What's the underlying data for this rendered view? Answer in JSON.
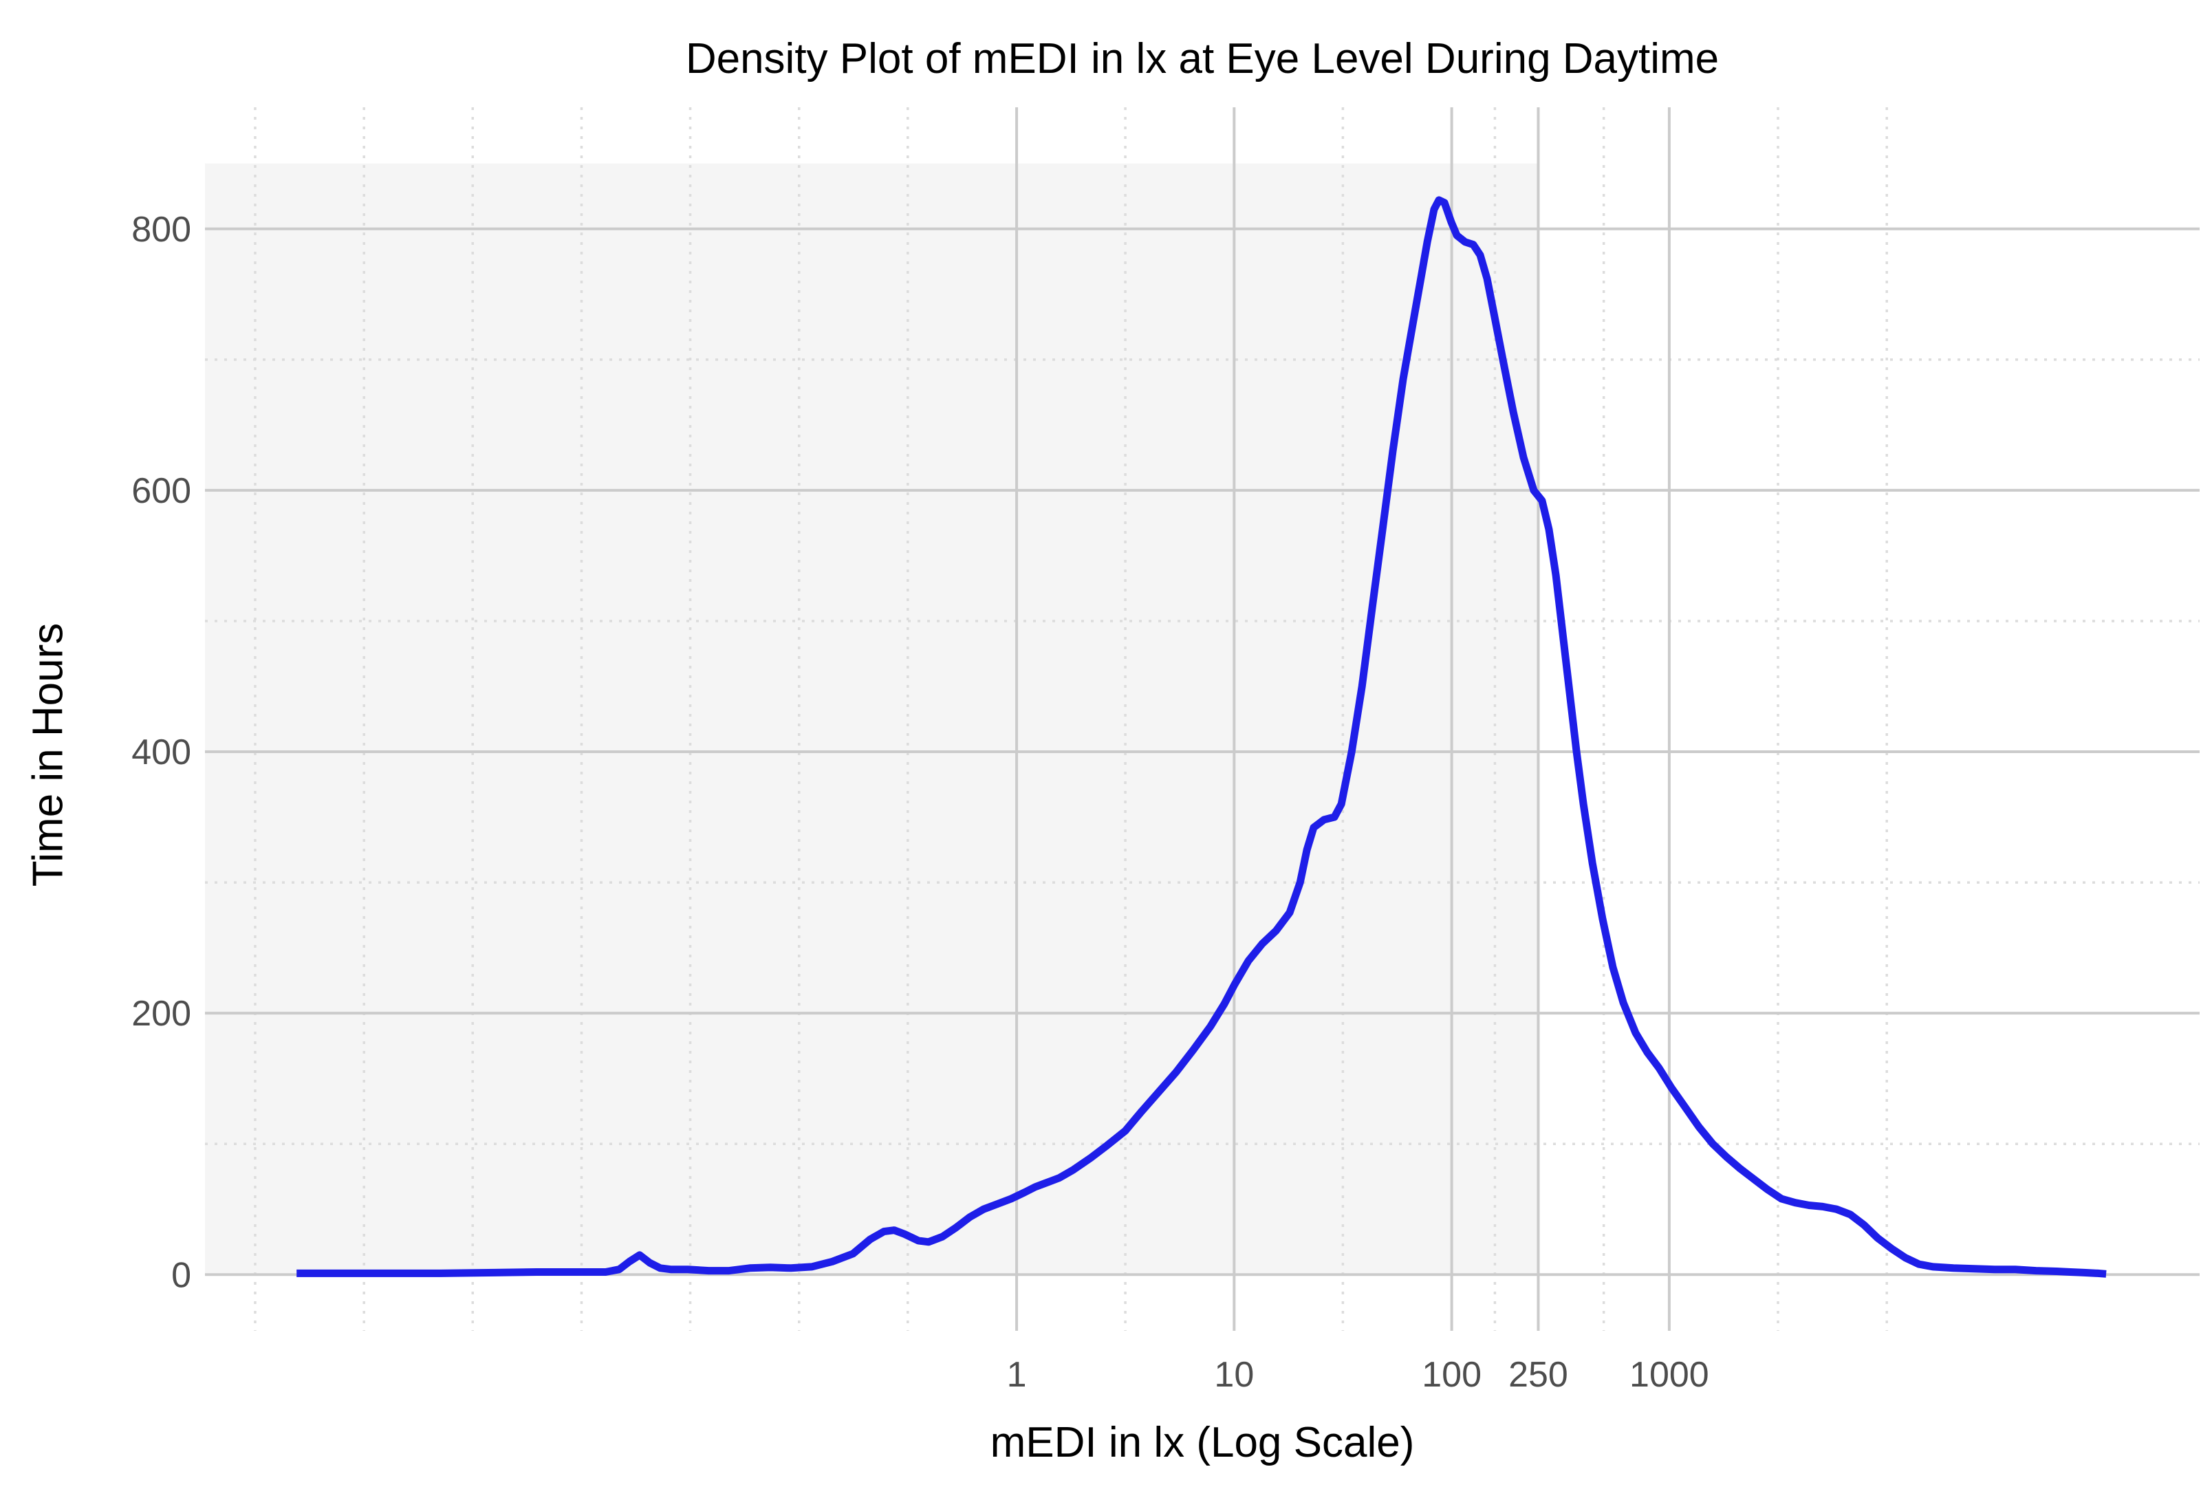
{
  "title": "Density Plot of mEDI in lx at Eye Level During Daytime",
  "chart_data": {
    "type": "line",
    "title": "Density Plot of mEDI in lx at Eye Level During Daytime",
    "xlabel": "mEDI in lx (Log Scale)",
    "ylabel": "Time in Hours",
    "x_scale": "log10",
    "grid": "major solid, minor dotted",
    "legend_position": "none",
    "x_breaks": [
      1,
      10,
      100,
      250,
      1000
    ],
    "x_break_labels": [
      "1",
      "10",
      "100",
      "250",
      "1000"
    ],
    "x_minor_breaks": [
      0.000316,
      0.001,
      0.00316,
      0.01,
      0.0316,
      0.1,
      0.316,
      3.16,
      31.6,
      158,
      500,
      3162,
      10000
    ],
    "y_breaks": [
      0,
      200,
      400,
      600,
      800
    ],
    "y_break_labels": [
      "0",
      "200",
      "400",
      "600",
      "800"
    ],
    "y_minor_breaks": [
      100,
      300,
      500,
      700
    ],
    "x_range_log10": [
      -3.731,
      5.438
    ],
    "y_range_hours": [
      -43,
      893
    ],
    "shaded_region": {
      "note": "light grey band below recommended 250 lx",
      "x_min_lx": 0.000186,
      "x_max_lx": 250,
      "y_min_hours": 0,
      "y_max_hours": 850
    },
    "series": [
      {
        "name": "density",
        "color": "#1e1ee8",
        "points": [
          [
            0.00049,
            1
          ],
          [
            0.0007,
            1
          ],
          [
            0.00125,
            1
          ],
          [
            0.00224,
            1
          ],
          [
            0.004,
            1.5
          ],
          [
            0.0062,
            2
          ],
          [
            0.0083,
            2
          ],
          [
            0.0111,
            2
          ],
          [
            0.0129,
            2
          ],
          [
            0.0149,
            4
          ],
          [
            0.0166,
            10
          ],
          [
            0.0185,
            15
          ],
          [
            0.0206,
            9
          ],
          [
            0.023,
            5
          ],
          [
            0.0257,
            4
          ],
          [
            0.0308,
            4
          ],
          [
            0.0384,
            3
          ],
          [
            0.0477,
            3
          ],
          [
            0.0593,
            5
          ],
          [
            0.0738,
            5.5
          ],
          [
            0.0918,
            5
          ],
          [
            0.1143,
            6
          ],
          [
            0.1422,
            10
          ],
          [
            0.177,
            16
          ],
          [
            0.2122,
            27
          ],
          [
            0.2455,
            33
          ],
          [
            0.2735,
            34
          ],
          [
            0.3054,
            31
          ],
          [
            0.3532,
            26
          ],
          [
            0.3936,
            25
          ],
          [
            0.4556,
            29
          ],
          [
            0.527,
            36
          ],
          [
            0.6095,
            44
          ],
          [
            0.7047,
            50
          ],
          [
            0.8152,
            54
          ],
          [
            0.9437,
            58
          ],
          [
            1.091,
            63
          ],
          [
            1.217,
            67
          ],
          [
            1.358,
            70
          ],
          [
            1.571,
            74
          ],
          [
            1.816,
            80
          ],
          [
            2.178,
            89
          ],
          [
            2.614,
            99
          ],
          [
            3.16,
            110
          ],
          [
            3.76,
            125
          ],
          [
            4.51,
            140
          ],
          [
            5.41,
            155
          ],
          [
            6.49,
            172
          ],
          [
            7.79,
            190
          ],
          [
            9.01,
            207
          ],
          [
            10.05,
            222
          ],
          [
            11.62,
            240
          ],
          [
            13.45,
            253
          ],
          [
            15.56,
            263
          ],
          [
            18.0,
            277
          ],
          [
            20.1,
            300
          ],
          [
            21.6,
            325
          ],
          [
            23.2,
            342
          ],
          [
            25.9,
            348
          ],
          [
            28.9,
            350
          ],
          [
            31.1,
            360
          ],
          [
            34.7,
            400
          ],
          [
            38.7,
            450
          ],
          [
            43.1,
            510
          ],
          [
            48.1,
            570
          ],
          [
            53.6,
            630
          ],
          [
            59.8,
            685
          ],
          [
            66.7,
            730
          ],
          [
            71.8,
            760
          ],
          [
            77.2,
            790
          ],
          [
            83.0,
            815
          ],
          [
            87.3,
            822
          ],
          [
            92.6,
            820
          ],
          [
            99.6,
            805
          ],
          [
            105.6,
            795
          ],
          [
            115.2,
            790
          ],
          [
            125.6,
            788
          ],
          [
            135.2,
            780
          ],
          [
            145.4,
            762
          ],
          [
            156.4,
            735
          ],
          [
            171.9,
            700
          ],
          [
            191.8,
            660
          ],
          [
            213.9,
            625
          ],
          [
            238.3,
            600
          ],
          [
            260.3,
            592
          ],
          [
            279.9,
            570
          ],
          [
            301.2,
            535
          ],
          [
            324.0,
            490
          ],
          [
            348.4,
            445
          ],
          [
            374.8,
            400
          ],
          [
            403.0,
            360
          ],
          [
            443.0,
            315
          ],
          [
            494.0,
            272
          ],
          [
            551.0,
            235
          ],
          [
            615.0,
            208
          ],
          [
            700.0,
            185
          ],
          [
            793.0,
            170
          ],
          [
            898.0,
            158
          ],
          [
            1023,
            143
          ],
          [
            1184,
            128
          ],
          [
            1369,
            113
          ],
          [
            1585,
            100
          ],
          [
            1832,
            90
          ],
          [
            2119,
            81
          ],
          [
            2451,
            73
          ],
          [
            2835,
            65
          ],
          [
            3279,
            58
          ],
          [
            3793,
            55
          ],
          [
            4387,
            53
          ],
          [
            5074,
            52
          ],
          [
            5869,
            50
          ],
          [
            6788,
            46
          ],
          [
            7852,
            38
          ],
          [
            9081,
            28
          ],
          [
            10500,
            20
          ],
          [
            12150,
            13
          ],
          [
            14050,
            8
          ],
          [
            16290,
            6
          ],
          [
            20250,
            5
          ],
          [
            25180,
            4.5
          ],
          [
            31320,
            4
          ],
          [
            38950,
            4
          ],
          [
            48500,
            3
          ],
          [
            60300,
            2.5
          ],
          [
            69800,
            2
          ],
          [
            80700,
            1.5
          ],
          [
            93400,
            1
          ],
          [
            101900,
            0.5
          ]
        ]
      }
    ]
  },
  "colors": {
    "curve": "#1e1ee8",
    "major_grid": "#cbcbcb",
    "minor_grid": "#dcdcdc",
    "shaded_region": "#f5f5f5",
    "tick_text": "#4d4d4d",
    "title_text": "#000000",
    "background": "#ffffff"
  }
}
